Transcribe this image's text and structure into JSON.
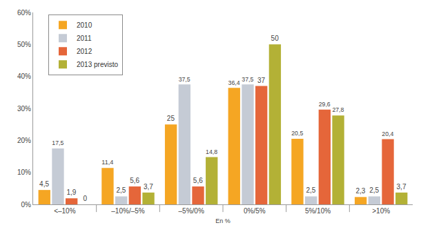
{
  "chart_data": {
    "type": "bar",
    "categories": [
      "<–10%",
      "–10%/–5%",
      "–5%/0%",
      "0%/5%",
      "5%/10%",
      ">10%"
    ],
    "series": [
      {
        "name": "2010",
        "color": "#f5a623",
        "values": [
          4.5,
          11.4,
          25,
          36.4,
          20.5,
          2.3
        ],
        "value_labels": [
          "4,5",
          "11,4",
          "25",
          "36,4",
          "20,5",
          "2,3"
        ]
      },
      {
        "name": "2011",
        "color": "#c5cbd5",
        "values": [
          17.5,
          2.5,
          37.5,
          37.5,
          2.5,
          2.5
        ],
        "value_labels": [
          "17,5",
          "2,5",
          "37,5",
          "37,5",
          "2,5",
          "2,5"
        ]
      },
      {
        "name": "2012",
        "color": "#e5663a",
        "values": [
          1.9,
          5.6,
          5.6,
          37,
          29.6,
          20.4
        ],
        "value_labels": [
          "1,9",
          "5,6",
          "5,6",
          "37",
          "29,6",
          "20,4"
        ]
      },
      {
        "name": "2013 previsto",
        "color": "#b3b136",
        "values": [
          0,
          3.7,
          14.8,
          50,
          27.8,
          3.7
        ],
        "value_labels": [
          "0",
          "3,7",
          "14,8",
          "50",
          "27,8",
          "3,7"
        ]
      }
    ],
    "x_label": "En %",
    "ylim": [
      0,
      60
    ],
    "yticks": [
      {
        "value": 0,
        "label": "0%"
      },
      {
        "value": 10,
        "label": "10%"
      },
      {
        "value": 20,
        "label": "20%"
      },
      {
        "value": 30,
        "label": "30%"
      },
      {
        "value": 40,
        "label": "40%"
      },
      {
        "value": 50,
        "label": "50%"
      },
      {
        "value": 60,
        "label": "60%"
      }
    ],
    "grid": false,
    "legend": "top-left",
    "data_labels": true
  }
}
